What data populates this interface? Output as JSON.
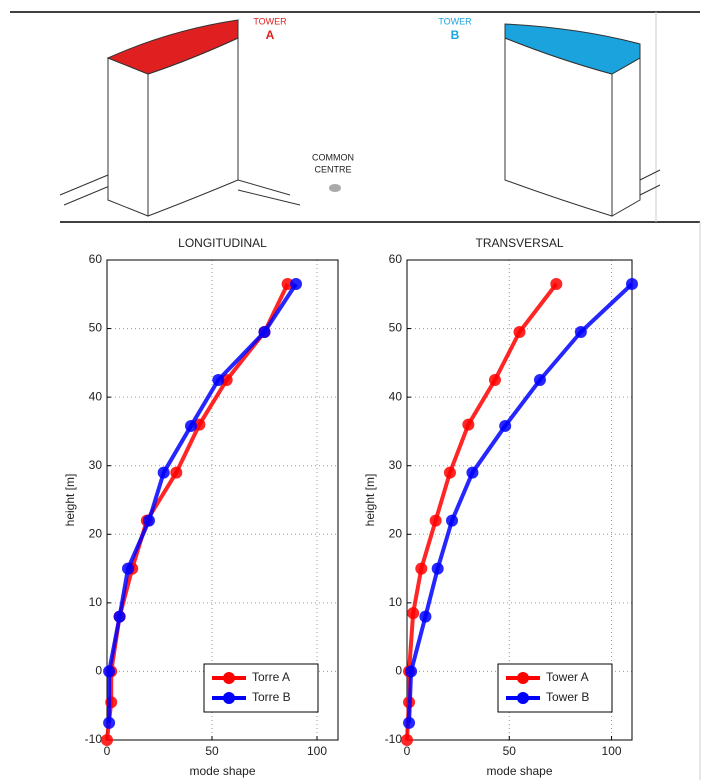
{
  "illustration": {
    "tower_a_label": "TOWER",
    "tower_a_letter": "A",
    "tower_b_label": "TOWER",
    "tower_b_letter": "B",
    "centre_line1": "COMMON",
    "centre_line2": "CENTRE"
  },
  "chart_data": [
    {
      "type": "line",
      "title": "LONGITUDINAL",
      "x_label": "mode shape",
      "y_label": "height [m]",
      "xlim": [
        0,
        110
      ],
      "ylim": [
        -10,
        60
      ],
      "xticks": [
        0,
        50,
        100
      ],
      "yticks": [
        60,
        50,
        40,
        30,
        20,
        10,
        0,
        -10
      ],
      "grid": true,
      "legend": "lower right",
      "series": [
        {
          "name": "Torre A",
          "color": "#ff0000",
          "x": [
            86,
            75,
            57,
            44,
            33,
            19,
            12,
            6,
            2,
            2,
            0
          ],
          "y": [
            56.5,
            49.5,
            42.5,
            36,
            29,
            22,
            15,
            8,
            0,
            -4.5,
            -10
          ]
        },
        {
          "name": "Torre B",
          "color": "#0000ff",
          "x": [
            90,
            75,
            53,
            40,
            27,
            20,
            10,
            6,
            1,
            1
          ],
          "y": [
            56.5,
            49.5,
            42.5,
            35.8,
            29,
            22,
            15,
            8,
            0,
            -7.5
          ]
        }
      ]
    },
    {
      "type": "line",
      "title": "TRANSVERSAL",
      "x_label": "mode shape",
      "y_label": "height [m]",
      "xlim": [
        0,
        110
      ],
      "ylim": [
        -10,
        60
      ],
      "xticks": [
        0,
        50,
        100
      ],
      "yticks": [
        60,
        50,
        40,
        30,
        20,
        10,
        0,
        -10
      ],
      "grid": true,
      "legend": "lower right",
      "series": [
        {
          "name": "Tower A",
          "color": "#ff0000",
          "x": [
            73,
            55,
            43,
            30,
            21,
            14,
            7,
            3,
            1,
            1,
            0
          ],
          "y": [
            56.5,
            49.5,
            42.5,
            36,
            29,
            22,
            15,
            8.5,
            0,
            -4.5,
            -10
          ]
        },
        {
          "name": "Tower B",
          "color": "#0000ff",
          "x": [
            110,
            85,
            65,
            48,
            32,
            22,
            15,
            9,
            2,
            1
          ],
          "y": [
            56.5,
            49.5,
            42.5,
            35.8,
            29,
            22,
            15,
            8,
            0,
            -7.5
          ]
        }
      ]
    }
  ]
}
